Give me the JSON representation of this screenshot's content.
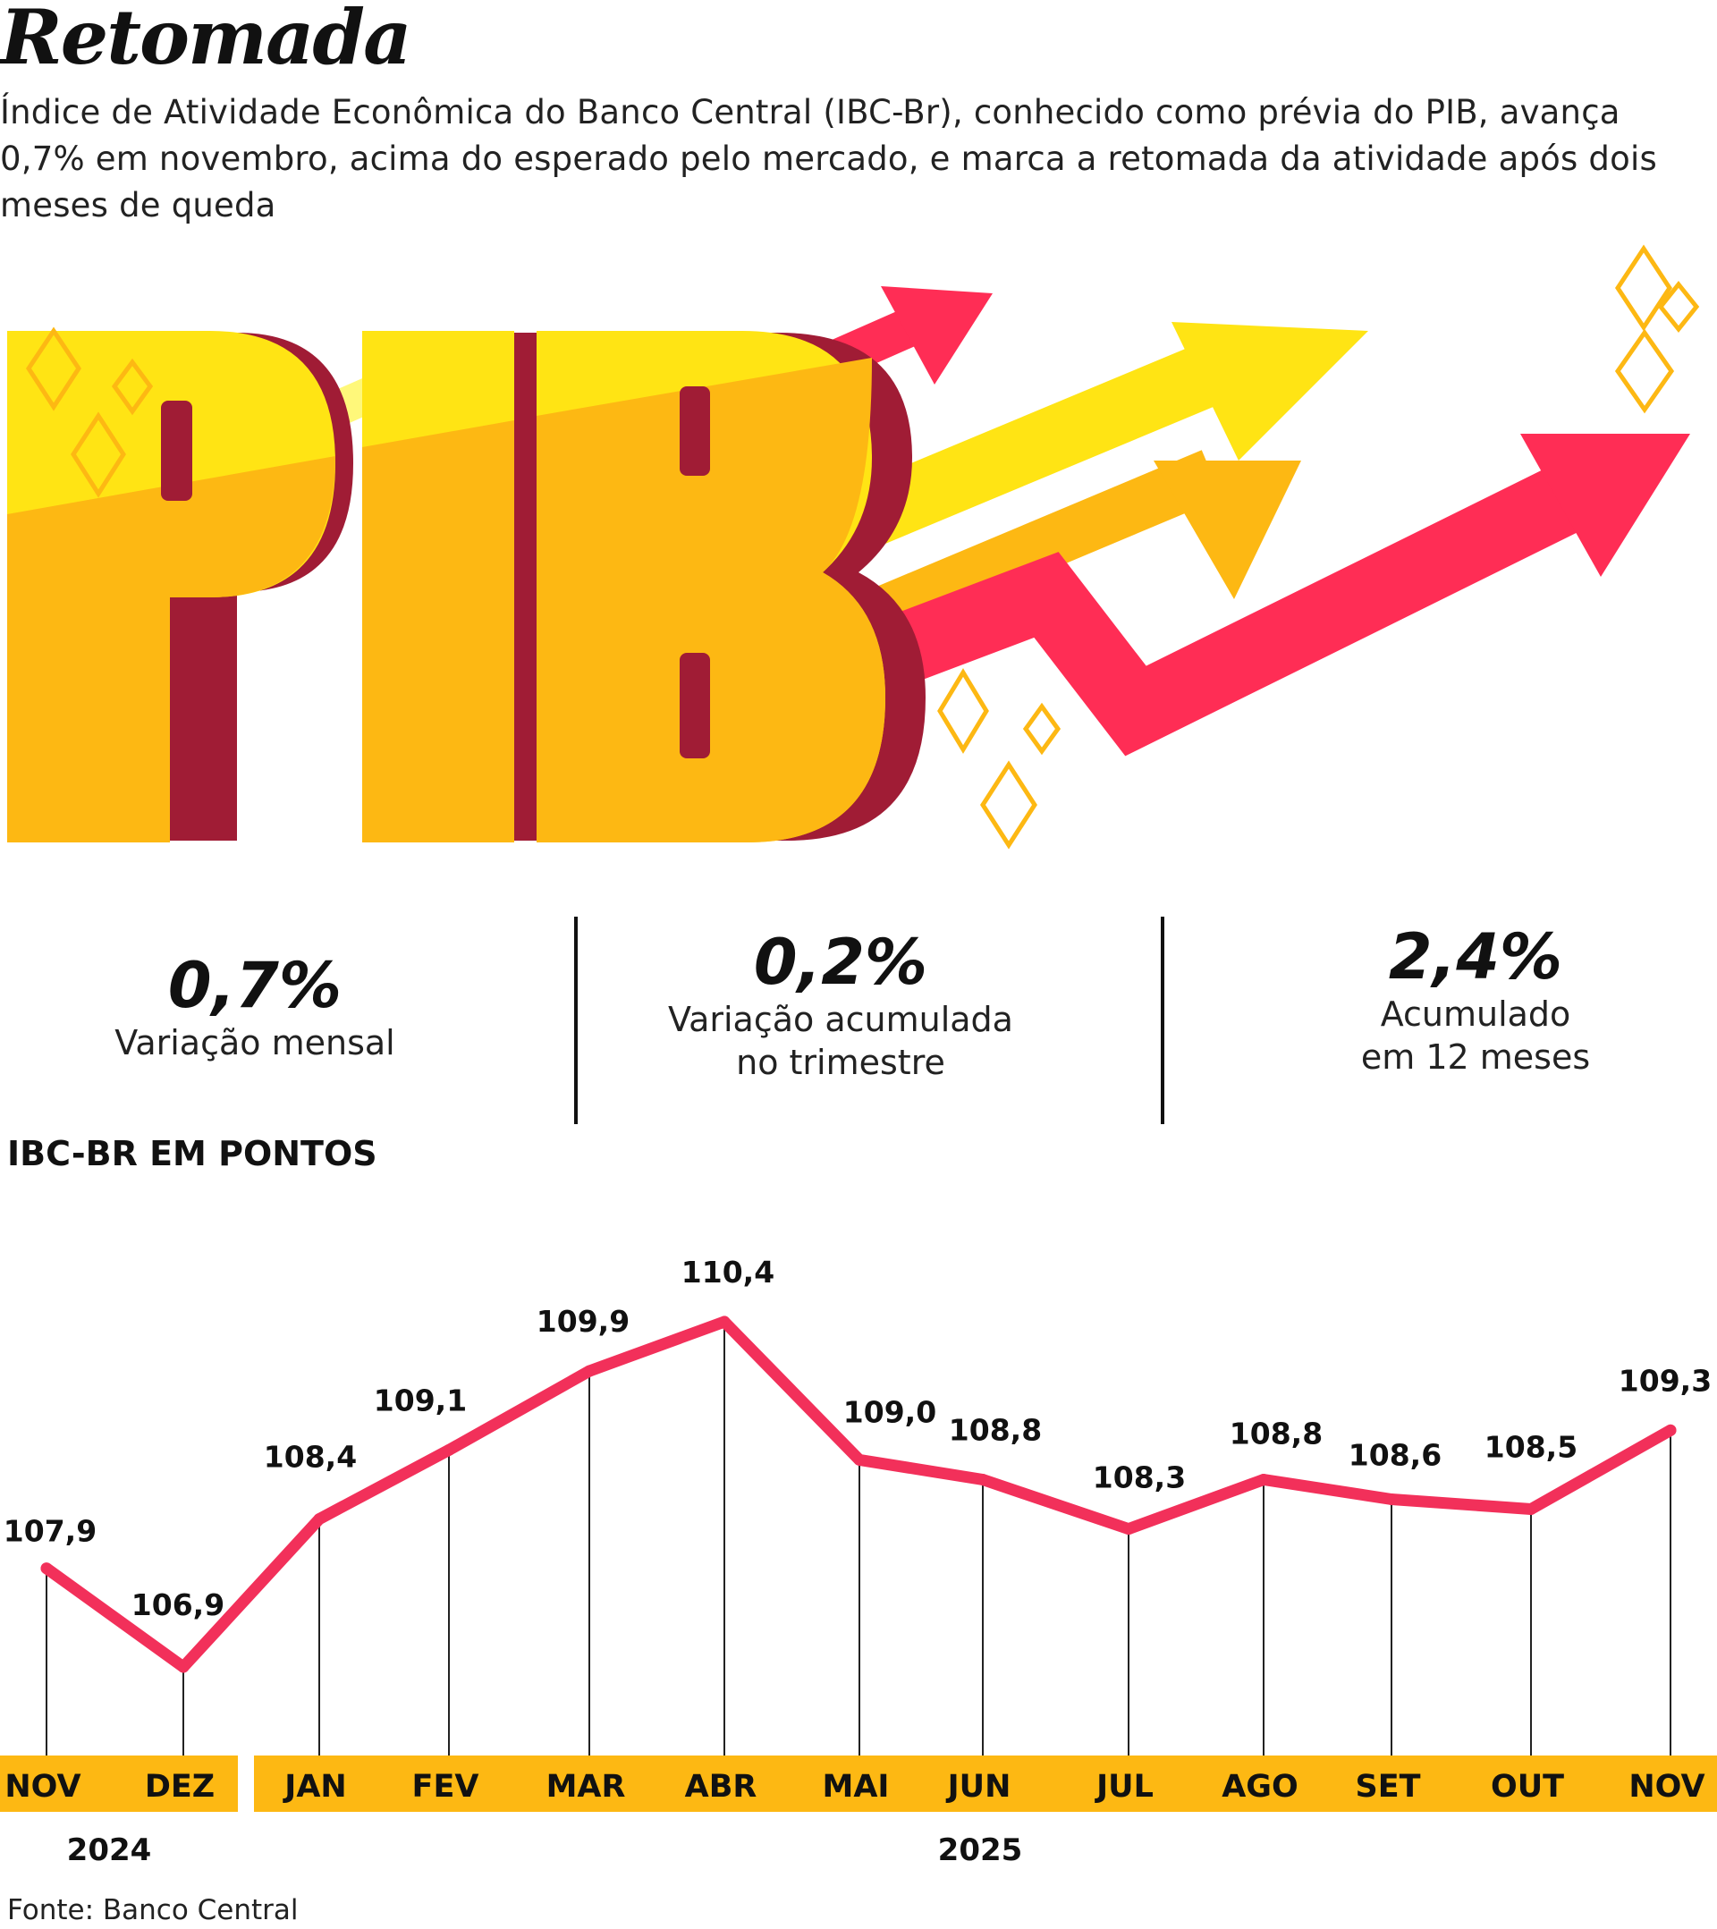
{
  "header": {
    "title": "Retomada",
    "subtitle": "Índice de Atividade Econômica do Banco Central (IBC-Br), conhecido como prévia do PIB, avança 0,7% em novembro, acima do esperado pelo mercado, e marca a retomada da atividade após dois meses de queda"
  },
  "hero": {
    "word": "PIB",
    "colors": {
      "yellow": "#FFE414",
      "orange": "#FDB813",
      "pink": "#FF2D55",
      "maroon": "#A01C35",
      "light_yellow": "#FFF87A",
      "diamond": "#FDB813"
    }
  },
  "stats": [
    {
      "value": "0,7%",
      "label_1": "Variação mensal",
      "label_2": ""
    },
    {
      "value": "0,2%",
      "label_1": "Variação acumulada",
      "label_2": "no trimestre"
    },
    {
      "value": "2,4%",
      "label_1": "Acumulado",
      "label_2": "em 12 meses"
    }
  ],
  "chart_label": "IBC-BR EM PONTOS",
  "chart_data": {
    "type": "line",
    "title": "IBC-BR EM PONTOS",
    "categories": [
      "NOV",
      "DEZ",
      "JAN",
      "FEV",
      "MAR",
      "ABR",
      "MAI",
      "JUN",
      "JUL",
      "AGO",
      "SET",
      "OUT",
      "NOV"
    ],
    "years": [
      {
        "label": "2024",
        "from": 0,
        "to": 1
      },
      {
        "label": "2025",
        "from": 2,
        "to": 12
      }
    ],
    "values": [
      107.9,
      106.9,
      108.4,
      109.1,
      109.9,
      110.4,
      109.0,
      108.8,
      108.3,
      108.8,
      108.6,
      108.5,
      109.3
    ],
    "value_labels": [
      "107,9",
      "106,9",
      "108,4",
      "109,1",
      "109,9",
      "110,4",
      "109,0",
      "108,8",
      "108,3",
      "108,8",
      "108,6",
      "108,5",
      "109,3"
    ],
    "line_color": "#F2305A",
    "band_color": "#FDB813",
    "grid": false,
    "legend": "none"
  },
  "source": "Fonte: Banco Central"
}
